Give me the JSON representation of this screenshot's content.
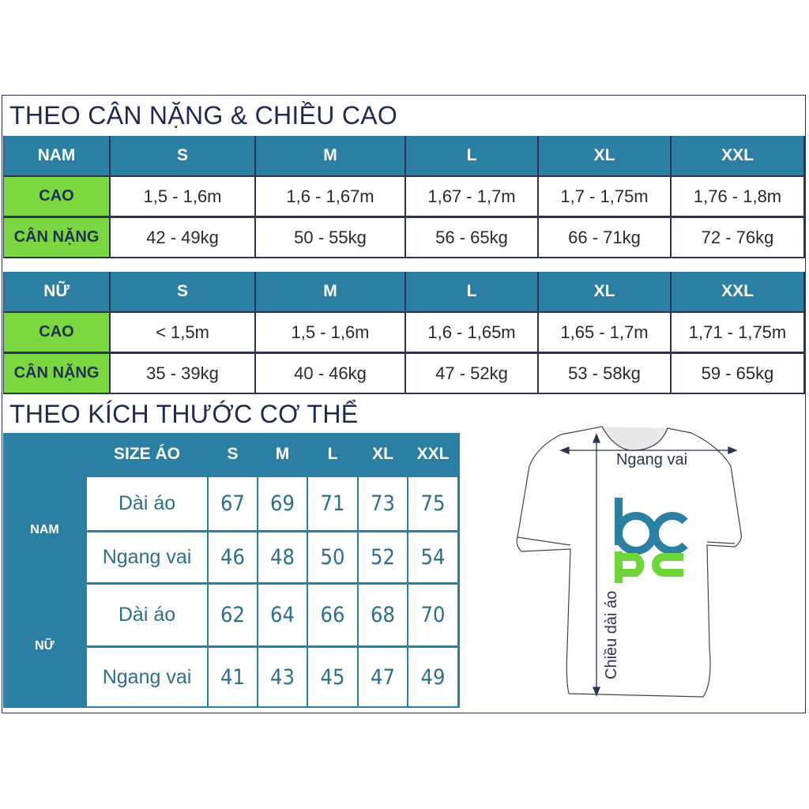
{
  "colors": {
    "header": "#2b7fa2",
    "green": "#7bd63f",
    "title": "#1f2a4d",
    "value_teal": "#2b6f8c",
    "logo_blue": "#2b7fa2",
    "logo_green": "#6fd63a"
  },
  "section1": {
    "title": "THEO CÂN NẶNG & CHIỀU CAO",
    "tables": [
      {
        "header": [
          "NAM",
          "S",
          "M",
          "L",
          "XL",
          "XXL"
        ],
        "rows": [
          {
            "label": "CAO",
            "values": [
              "1,5 - 1,6m",
              "1,6 - 1,67m",
              "1,67 - 1,7m",
              "1,7 - 1,75m",
              "1,76 - 1,8m"
            ]
          },
          {
            "label": "CÂN NẶNG",
            "values": [
              "42 - 49kg",
              "50 - 55kg",
              "56 - 65kg",
              "66 - 71kg",
              "72 - 76kg"
            ]
          }
        ]
      },
      {
        "header": [
          "NỮ",
          "S",
          "M",
          "L",
          "XL",
          "XXL"
        ],
        "rows": [
          {
            "label": "CAO",
            "values": [
              "< 1,5m",
              "1,5 - 1,6m",
              "1,6 - 1,65m",
              "1,65 - 1,7m",
              "1,71 - 1,75m"
            ]
          },
          {
            "label": "CÂN NẶNG",
            "values": [
              "35 - 39kg",
              "40 - 46kg",
              "47 - 52kg",
              "53 - 58kg",
              "59 - 65kg"
            ]
          }
        ]
      }
    ]
  },
  "section2": {
    "title": "THEO KÍCH THƯỚC CƠ THỂ",
    "header": [
      "",
      "SIZE ÁO",
      "S",
      "M",
      "L",
      "XL",
      "XXL"
    ],
    "groups": [
      {
        "label": "NAM",
        "rows": [
          {
            "label": "Dài áo",
            "values": [
              "67",
              "69",
              "71",
              "73",
              "75"
            ]
          },
          {
            "label": "Ngang vai",
            "values": [
              "46",
              "48",
              "50",
              "52",
              "54"
            ]
          }
        ]
      },
      {
        "label": "NỮ",
        "rows": [
          {
            "label": "Dài áo",
            "values": [
              "62",
              "64",
              "66",
              "68",
              "70"
            ]
          },
          {
            "label": "Ngang vai",
            "values": [
              "41",
              "43",
              "45",
              "47",
              "49"
            ]
          }
        ]
      }
    ]
  },
  "diagram": {
    "width_label": "Ngang vai",
    "length_label": "Chiều dài áo",
    "logo": "bcpc"
  }
}
